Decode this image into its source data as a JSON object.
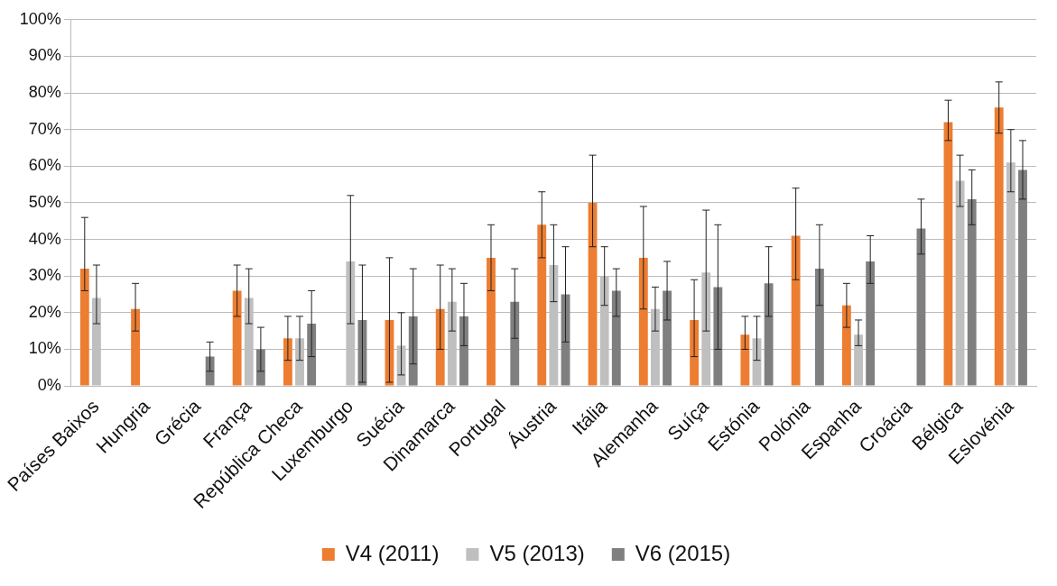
{
  "chart_data": {
    "type": "bar",
    "categories": [
      "Países Baixos",
      "Hungria",
      "Grécia",
      "França",
      "República Checa",
      "Luxemburgo",
      "Suécia",
      "Dinamarca",
      "Portugal",
      "Áustria",
      "Itália",
      "Alemanha",
      "Suíça",
      "Estónia",
      "Polónia",
      "Espanha",
      "Croácia",
      "Bélgica",
      "Eslovénia"
    ],
    "series": [
      {
        "name": "V4 (2011)",
        "color": "#ed7d31",
        "values": [
          32,
          21,
          null,
          26,
          13,
          null,
          18,
          21,
          35,
          44,
          50,
          35,
          18,
          14,
          41,
          22,
          null,
          72,
          76
        ],
        "errors": [
          [
            26,
            46
          ],
          [
            15,
            28
          ],
          null,
          [
            19,
            33
          ],
          [
            7,
            19
          ],
          null,
          [
            1,
            35
          ],
          [
            10,
            33
          ],
          [
            26,
            44
          ],
          [
            35,
            53
          ],
          [
            38,
            63
          ],
          [
            21,
            49
          ],
          [
            8,
            29
          ],
          [
            10,
            19
          ],
          [
            29,
            54
          ],
          [
            16,
            28
          ],
          null,
          [
            67,
            78
          ],
          [
            69,
            83
          ]
        ]
      },
      {
        "name": "V5 (2013)",
        "color": "#bfbfbf",
        "values": [
          24,
          null,
          null,
          24,
          13,
          34,
          11,
          23,
          null,
          33,
          30,
          21,
          31,
          13,
          null,
          14,
          null,
          56,
          61
        ],
        "errors": [
          [
            17,
            33
          ],
          null,
          null,
          [
            17,
            32
          ],
          [
            7,
            19
          ],
          [
            17,
            52
          ],
          [
            3,
            20
          ],
          [
            15,
            32
          ],
          null,
          [
            23,
            44
          ],
          [
            22,
            38
          ],
          [
            15,
            27
          ],
          [
            15,
            48
          ],
          [
            7,
            19
          ],
          null,
          [
            11,
            18
          ],
          null,
          [
            49,
            63
          ],
          [
            53,
            70
          ]
        ]
      },
      {
        "name": "V6 (2015)",
        "color": "#7f7f7f",
        "values": [
          null,
          null,
          8,
          10,
          17,
          18,
          19,
          19,
          23,
          25,
          26,
          26,
          27,
          28,
          32,
          34,
          43,
          51,
          59
        ],
        "errors": [
          null,
          null,
          [
            4,
            12
          ],
          [
            4,
            16
          ],
          [
            8,
            26
          ],
          [
            1,
            33
          ],
          [
            6,
            32
          ],
          [
            11,
            28
          ],
          [
            13,
            32
          ],
          [
            12,
            38
          ],
          [
            19,
            32
          ],
          [
            18,
            34
          ],
          [
            10,
            44
          ],
          [
            19,
            38
          ],
          [
            22,
            44
          ],
          [
            28,
            41
          ],
          [
            36,
            51
          ],
          [
            44,
            59
          ],
          [
            51,
            67
          ]
        ]
      }
    ],
    "ylim": [
      0,
      100
    ],
    "yticks": [
      {
        "value": 0,
        "label": "0%"
      },
      {
        "value": 10,
        "label": "10%"
      },
      {
        "value": 20,
        "label": "20%"
      },
      {
        "value": 30,
        "label": "30%"
      },
      {
        "value": 40,
        "label": "40%"
      },
      {
        "value": 50,
        "label": "50%"
      },
      {
        "value": 60,
        "label": "60%"
      },
      {
        "value": 70,
        "label": "70%"
      },
      {
        "value": 80,
        "label": "80%"
      },
      {
        "value": 90,
        "label": "90%"
      },
      {
        "value": 100,
        "label": "100%"
      }
    ],
    "grid": "y",
    "legend": "bottom"
  }
}
